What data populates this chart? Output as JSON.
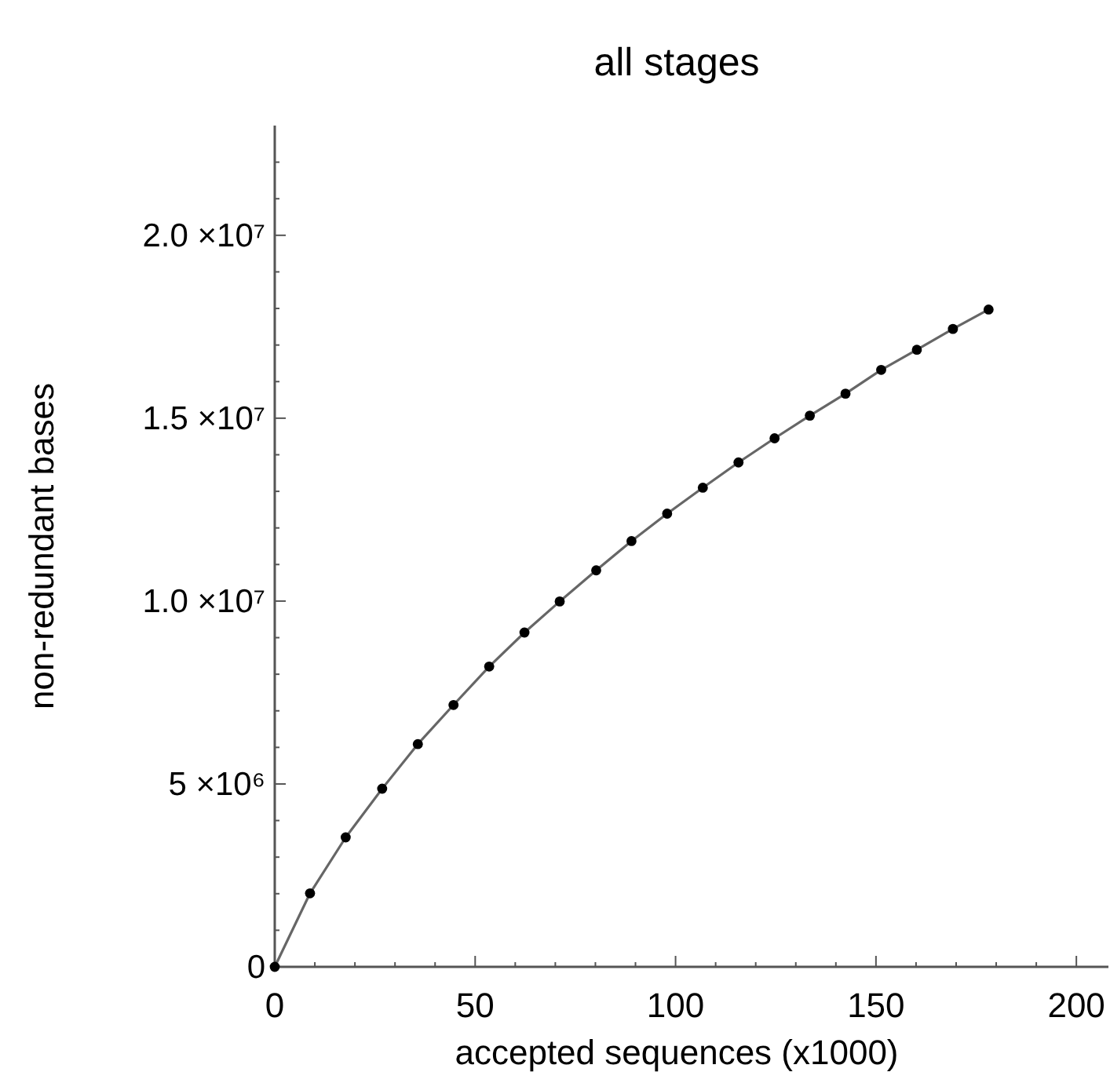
{
  "chart_data": {
    "type": "line",
    "title": "all stages",
    "xlabel": "accepted sequences (x1000)",
    "ylabel": "non-redundant bases",
    "x": [
      0,
      8.8,
      17.7,
      26.8,
      35.7,
      44.6,
      53.5,
      62.3,
      71.1,
      80.2,
      89.0,
      97.9,
      106.8,
      115.7,
      124.7,
      133.5,
      142.4,
      151.3,
      160.2,
      169.2,
      178.1
    ],
    "series": [
      {
        "color": "#000000",
        "values": [
          0,
          2010000,
          3540000,
          4870000,
          6090000,
          7160000,
          8210000,
          9140000,
          9990000,
          10840000,
          11640000,
          12390000,
          13100000,
          13790000,
          14450000,
          15070000,
          15670000,
          16320000,
          16870000,
          17440000,
          17970000
        ]
      }
    ],
    "marker": "circle",
    "line_style": "solid",
    "xlim": [
      0,
      208
    ],
    "ylim": [
      0,
      23000000
    ],
    "xticks": [
      0,
      {
        "value": 10,
        "label": null
      },
      {
        "value": 20,
        "label": null
      },
      {
        "value": 30,
        "label": null
      },
      {
        "value": 40,
        "label": null
      },
      50,
      {
        "value": 60,
        "label": null
      },
      {
        "value": 70,
        "label": null
      },
      {
        "value": 80,
        "label": null
      },
      {
        "value": 90,
        "label": null
      },
      100,
      {
        "value": 110,
        "label": null
      },
      {
        "value": 120,
        "label": null
      },
      {
        "value": 130,
        "label": null
      },
      {
        "value": 140,
        "label": null
      },
      150,
      {
        "value": 160,
        "label": null
      },
      {
        "value": 170,
        "label": null
      },
      {
        "value": 180,
        "label": null
      },
      {
        "value": 190,
        "label": null
      },
      200
    ],
    "yticks": [
      0,
      {
        "value": 1000000,
        "label": null
      },
      {
        "value": 2000000,
        "label": null
      },
      {
        "value": 3000000,
        "label": null
      },
      {
        "value": 4000000,
        "label": null
      },
      {
        "value": 5000000,
        "label": "5 ×10⁶"
      },
      {
        "value": 6000000,
        "label": null
      },
      {
        "value": 7000000,
        "label": null
      },
      {
        "value": 8000000,
        "label": null
      },
      {
        "value": 9000000,
        "label": null
      },
      {
        "value": 10000000,
        "label": "1.0 ×10⁷"
      },
      {
        "value": 11000000,
        "label": null
      },
      {
        "value": 12000000,
        "label": null
      },
      {
        "value": 13000000,
        "label": null
      },
      {
        "value": 14000000,
        "label": null
      },
      {
        "value": 15000000,
        "label": "1.5 ×10⁷"
      },
      {
        "value": 16000000,
        "label": null
      },
      {
        "value": 17000000,
        "label": null
      },
      {
        "value": 18000000,
        "label": null
      },
      {
        "value": 19000000,
        "label": null
      },
      {
        "value": 20000000,
        "label": "2.0 ×10⁷"
      },
      {
        "value": 21000000,
        "label": null
      },
      {
        "value": 22000000,
        "label": null
      }
    ]
  }
}
